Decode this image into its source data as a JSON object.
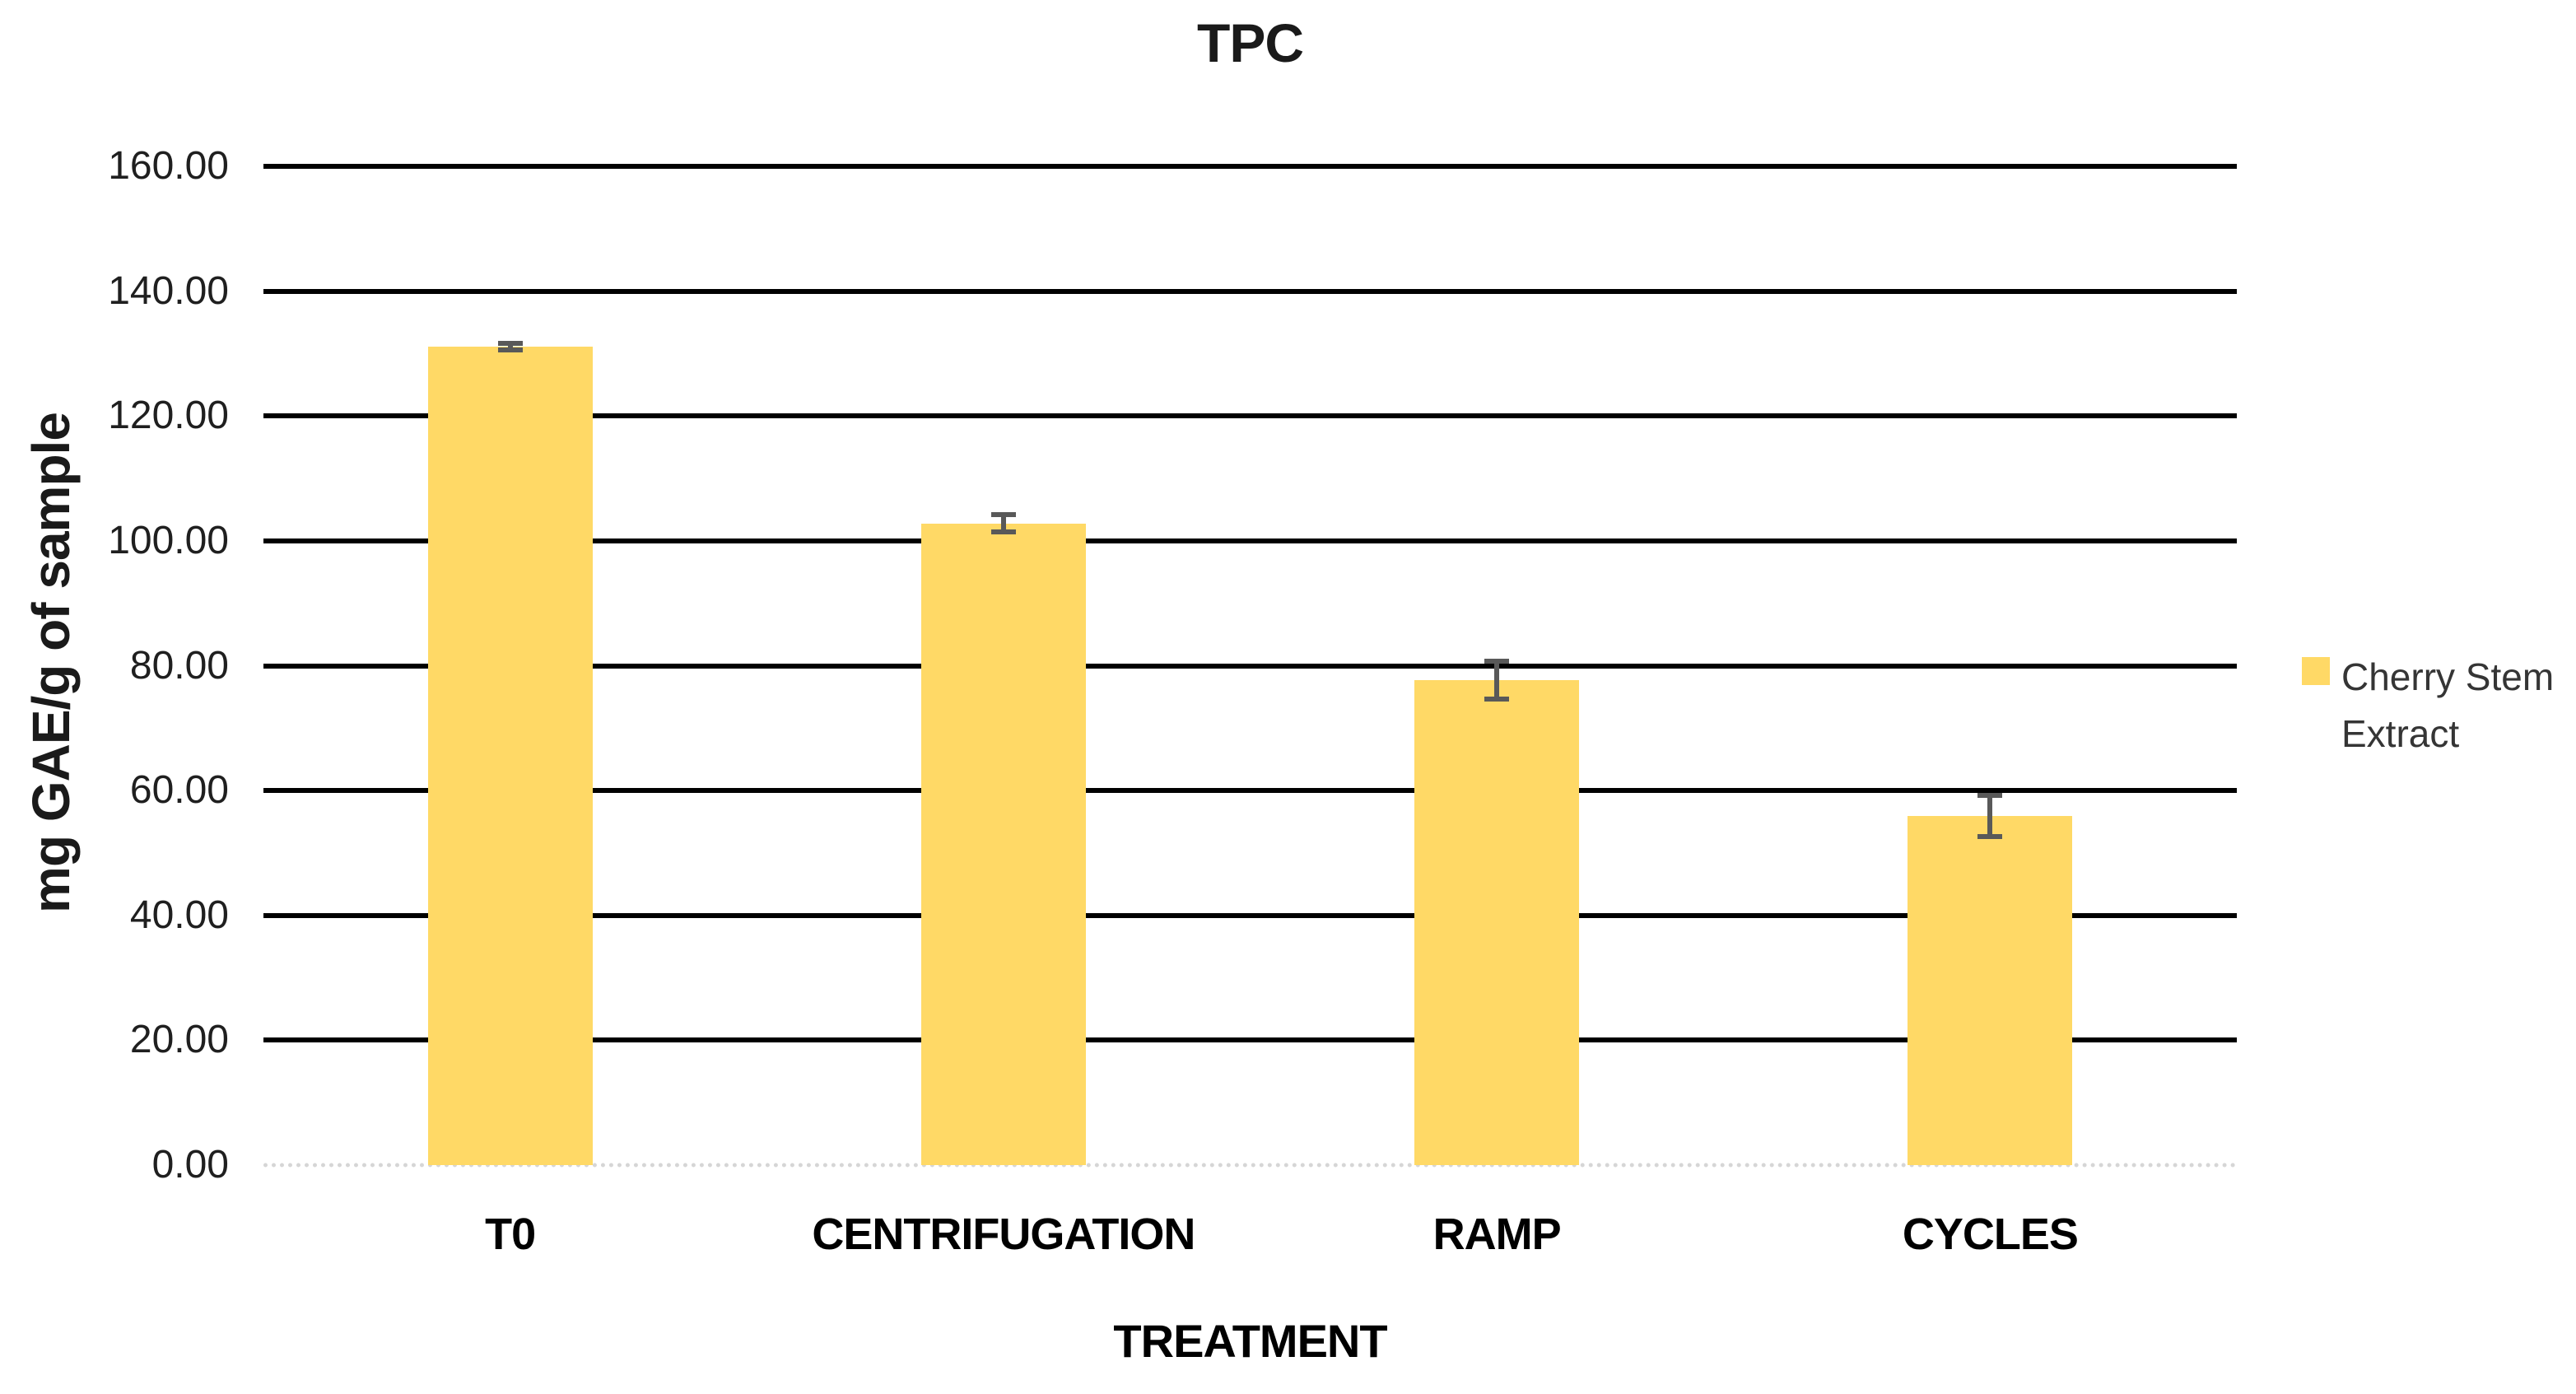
{
  "chart_data": {
    "type": "bar",
    "title": "TPC",
    "xlabel": "TREATMENT",
    "ylabel": "mg GAE/g of sample",
    "categories": [
      "T0",
      "CENTRIFUGATION",
      "RAMP",
      "CYCLES"
    ],
    "series": [
      {
        "name": "Cherry Stem Extract",
        "values": [
          131.1,
          102.8,
          77.7,
          55.9
        ],
        "errors": [
          0.9,
          1.8,
          3.4,
          3.7
        ],
        "color": "#FFD966"
      }
    ],
    "ylim": [
      0,
      160
    ],
    "yticks": [
      0,
      20,
      40,
      60,
      80,
      100,
      120,
      140,
      160
    ],
    "ytick_decimals": 2,
    "grid": "on",
    "gridline_color": "#000000",
    "zero_line_color": "#D6D6D6",
    "error_bar_color": "#595959",
    "background_color": "#FFFFFF",
    "legend_position": "right"
  },
  "legend": {
    "items": [
      {
        "label": "Cherry Stem Extract",
        "color": "#FFD966"
      }
    ]
  }
}
